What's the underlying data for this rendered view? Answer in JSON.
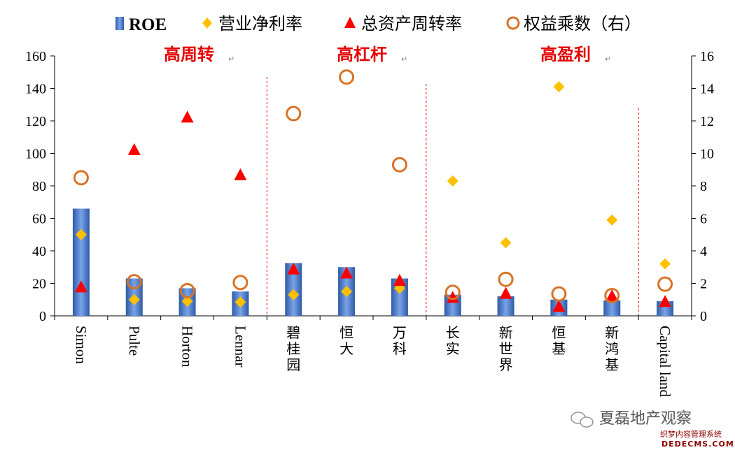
{
  "chart_data": {
    "type": "bar",
    "categories": [
      "Simon",
      "Pulte",
      "Horton",
      "Lennar",
      "碧桂园",
      "恒大",
      "万科",
      "长实",
      "新世界",
      "恒基",
      "新鸿基",
      "Capital land"
    ],
    "series": [
      {
        "name": "ROE",
        "type": "bar",
        "axis": "left",
        "values": [
          66,
          23,
          17,
          15,
          32.5,
          30,
          23,
          13,
          12,
          10,
          9.5,
          9
        ]
      },
      {
        "name": "营业净利率",
        "type": "scatter",
        "marker": "diamond",
        "axis": "left",
        "values": [
          50,
          10,
          9,
          8.5,
          13,
          15,
          17,
          83,
          45,
          141,
          59,
          32
        ]
      },
      {
        "name": "总资产周转率",
        "type": "scatter",
        "marker": "triangle",
        "axis": "left",
        "values": [
          17.5,
          102,
          122,
          86.5,
          28.5,
          26,
          21.5,
          11,
          13.5,
          5.5,
          12,
          8.5
        ]
      },
      {
        "name": "权益乘数（右）",
        "type": "scatter",
        "marker": "circle",
        "axis": "right",
        "values": [
          8.5,
          2.1,
          1.55,
          2.05,
          12.45,
          14.7,
          9.3,
          1.45,
          2.25,
          1.35,
          1.25,
          1.95
        ]
      }
    ],
    "ylim": [
      0,
      160
    ],
    "y2lim": [
      0,
      16
    ],
    "yticks": [
      "0",
      "20",
      "40",
      "60",
      "80",
      "100",
      "120",
      "140",
      "160"
    ],
    "y2ticks": [
      "0",
      "2",
      "4",
      "6",
      "8",
      "10",
      "12",
      "14",
      "16"
    ],
    "groups": [
      {
        "label": "高周转",
        "span": [
          0,
          3
        ]
      },
      {
        "label": "高杠杆",
        "span": [
          4,
          6
        ]
      },
      {
        "label": "高盈利",
        "span": [
          7,
          11
        ]
      }
    ],
    "legend_position": "top",
    "grid": false
  },
  "colors": {
    "bar": "#4f7fd1",
    "bar_dark": "#2e5aa8",
    "diamond": "#ffc000",
    "triangle": "#ff0000",
    "circle": "#d87327",
    "group_label": "#e60000",
    "divider": "#e60000"
  },
  "watermark": {
    "text": "夏磊地产观察",
    "site": "织梦内容管理系统",
    "url": "DEDECMS.COM"
  }
}
